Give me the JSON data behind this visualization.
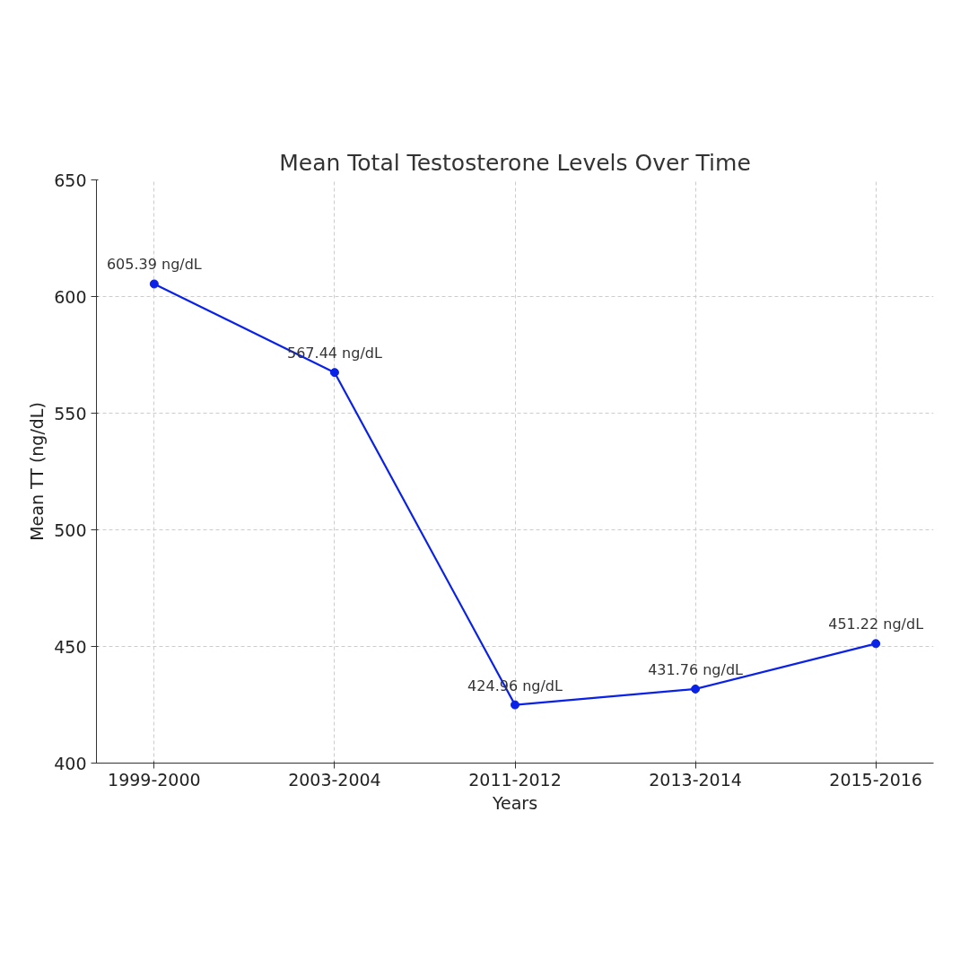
{
  "chart_data": {
    "type": "line",
    "title": "Mean Total Testosterone Levels Over Time",
    "xlabel": "Years",
    "ylabel": "Mean TT (ng/dL)",
    "categories": [
      "1999-2000",
      "2003-2004",
      "2011-2012",
      "2013-2014",
      "2015-2016"
    ],
    "series": [
      {
        "color": "#0a22e8",
        "values": [
          605.39,
          567.44,
          424.96,
          431.76,
          451.22
        ],
        "value_labels": [
          "605.39 ng/dL",
          "567.44 ng/dL",
          "424.96 ng/dL",
          "431.76 ng/dL",
          "451.22 ng/dL"
        ]
      }
    ],
    "ylim": [
      400,
      650
    ],
    "yticks": [
      400,
      450,
      500,
      550,
      600,
      650
    ],
    "grid": true,
    "marker": "circle",
    "line_style": "solid"
  }
}
